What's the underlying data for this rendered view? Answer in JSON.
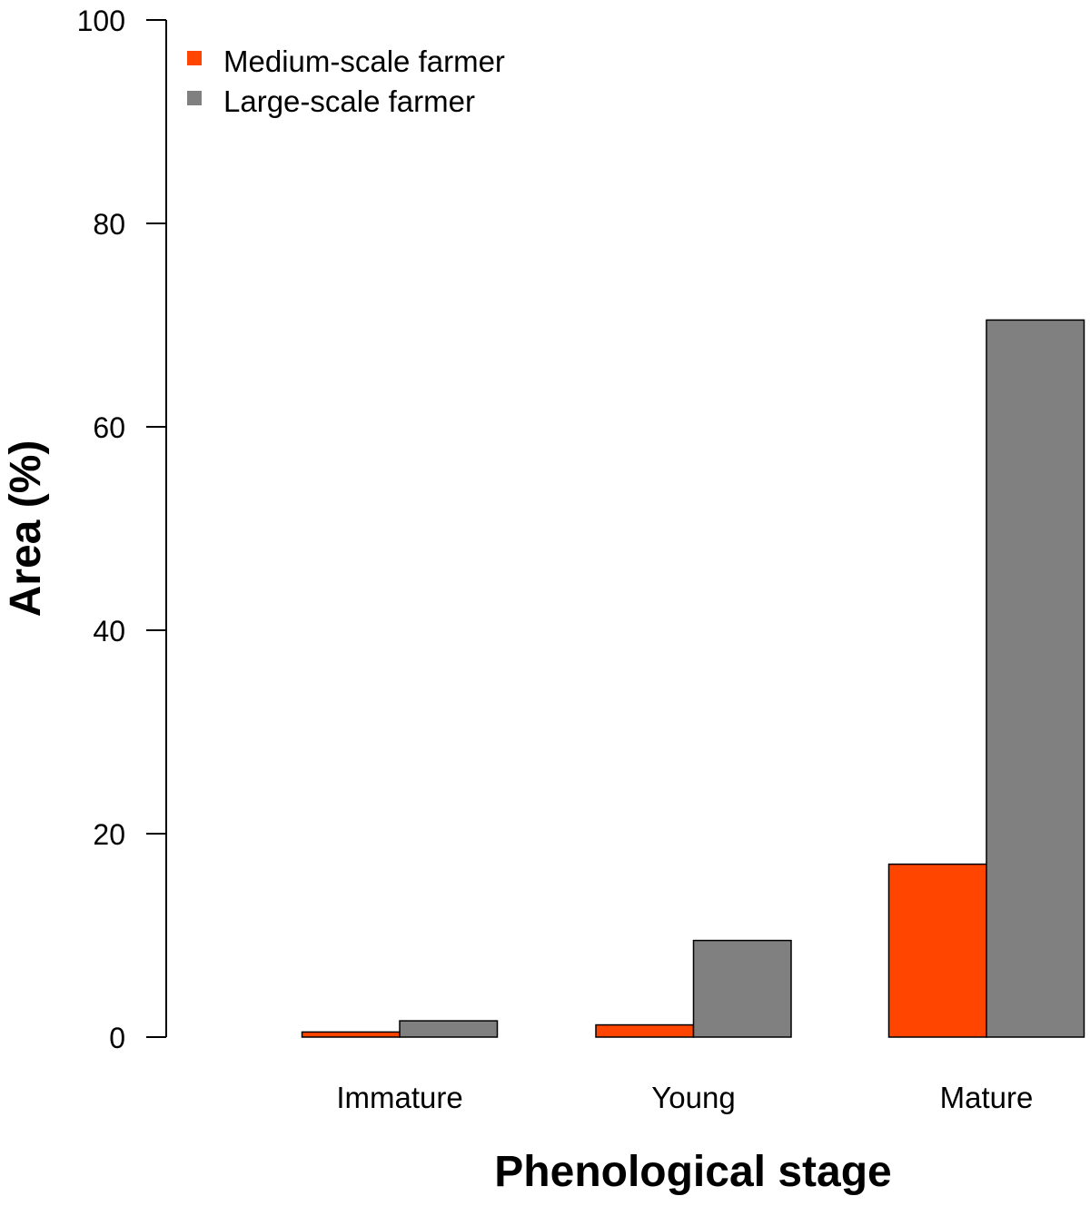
{
  "chart_data": {
    "type": "bar",
    "title": "",
    "xlabel": "Phenological stage",
    "ylabel": "Area (%)",
    "ylim": [
      0,
      100
    ],
    "yticks": [
      0,
      20,
      40,
      60,
      80,
      100
    ],
    "categories": [
      "Immature",
      "Young",
      "Mature"
    ],
    "series": [
      {
        "name": "Medium-scale farmer",
        "color": "#ff4500",
        "values": [
          0.5,
          1.2,
          17
        ]
      },
      {
        "name": "Large-scale farmer",
        "color": "#808080",
        "values": [
          1.6,
          9.5,
          70.5
        ]
      }
    ],
    "legend": {
      "position": "top-left"
    },
    "grid": false
  }
}
